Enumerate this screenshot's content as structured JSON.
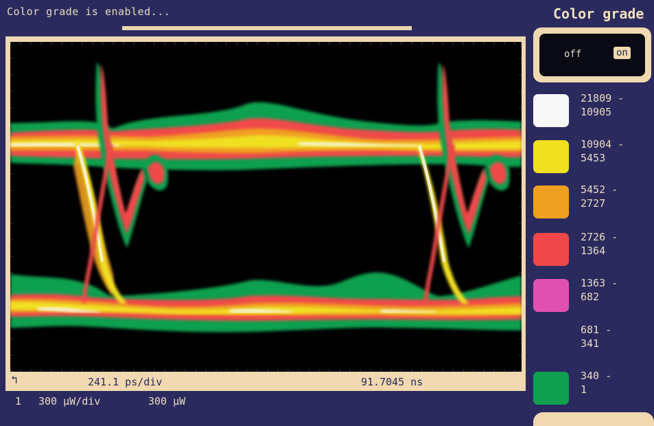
{
  "status": {
    "message": "Color grade is enabled...",
    "progress": 1.0
  },
  "scope": {
    "timebase": "241.1 ps/div",
    "delay": "91.7045 ns",
    "channel": "1",
    "scale": "300 µW/div",
    "offset": "300 µW",
    "ground_marker_icon": "ground-arrow-icon"
  },
  "panel": {
    "title": "Color grade",
    "toggle_off_label": "off",
    "toggle_on_label": "on",
    "toggle_state": "on"
  },
  "legend": [
    {
      "label": "21809 -\n10905",
      "color": "#f8f8f8"
    },
    {
      "label": "10904 -\n5453",
      "color": "#f0e020"
    },
    {
      "label": "5452 -\n2727",
      "color": "#f0a020"
    },
    {
      "label": "2726 -\n1364",
      "color": "#f04848"
    },
    {
      "label": "1363 -\n682",
      "color": "#e050b0"
    },
    {
      "label": "681 -\n341",
      "color": "#2a2a5e"
    },
    {
      "label": "340 -\n1",
      "color": "#10a050"
    }
  ],
  "colors": {
    "background": "#2a2a5e",
    "frame": "#f0d8b0",
    "text": "#e8dcc0"
  }
}
